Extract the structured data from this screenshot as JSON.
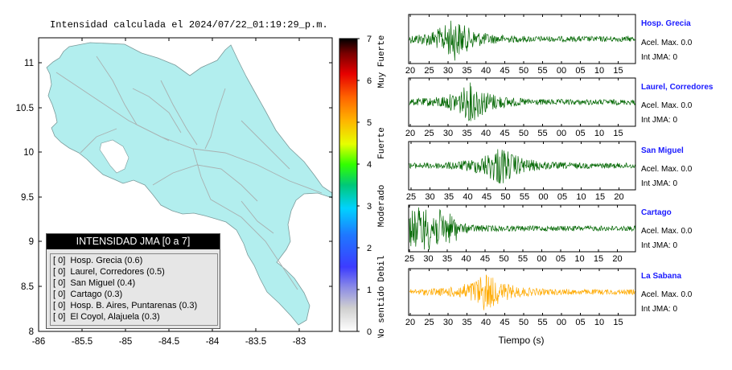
{
  "map": {
    "title": "Intensidad calculada el 2024/07/22_01:19:29_p.m.",
    "x_ticks": [
      "-86",
      "-85.5",
      "-85",
      "-84.5",
      "-84",
      "-83.5",
      "-83"
    ],
    "y_ticks": [
      "11",
      "10.5",
      "10",
      "9.5",
      "9",
      "8.5",
      "8"
    ],
    "land_color": "#b2eeee",
    "water_color": "#ffffff"
  },
  "colorbar": {
    "ticks": [
      "0",
      "1",
      "2",
      "3",
      "4",
      "5",
      "6",
      "7"
    ],
    "categories": [
      "No sentido",
      "Debil",
      "Moderado",
      "Fuerte",
      "Muy Fuerte"
    ]
  },
  "legend": {
    "title": "INTENSIDAD JMA [0 a 7]",
    "rows": [
      "[ 0]  Hosp. Grecia (0.6)",
      "[ 0]  Laurel, Corredores (0.5)",
      "[ 0]  San Miguel (0.4)",
      "[ 0]  Cartago (0.3)",
      "[ 0]  Hosp. B. Aires, Puntarenas (0.3)",
      "[ 0]  El Coyol, Alajuela (0.3)"
    ]
  },
  "seismograms": {
    "xlabel": "Tiempo (s)",
    "stations": [
      {
        "name": "Hosp. Grecia",
        "accel": "Acel. Max. 0.0",
        "int": "Int JMA: 0",
        "color": "#006600",
        "ticks": [
          "20",
          "25",
          "30",
          "35",
          "40",
          "45",
          "50",
          "55",
          "00",
          "05",
          "10",
          "15"
        ],
        "first_tick_offset": 0
      },
      {
        "name": "Laurel, Corredores",
        "accel": "Acel. Max. 0.0",
        "int": "Int JMA: 0",
        "color": "#006600",
        "ticks": [
          "20",
          "25",
          "30",
          "35",
          "40",
          "45",
          "50",
          "55",
          "00",
          "05",
          "10",
          "15"
        ],
        "first_tick_offset": 0
      },
      {
        "name": "San Miguel",
        "accel": "Acel. Max. 0.0",
        "int": "Int JMA: 0",
        "color": "#006600",
        "ticks": [
          "25",
          "30",
          "35",
          "40",
          "45",
          "50",
          "55",
          "00",
          "05",
          "10",
          "15",
          "20"
        ],
        "first_tick_offset": 3
      },
      {
        "name": "Cartago",
        "accel": "Acel. Max. 0.0",
        "int": "Int JMA: 0",
        "color": "#006600",
        "ticks": [
          "25",
          "30",
          "35",
          "40",
          "45",
          "50",
          "55",
          "00",
          "05",
          "10",
          "15",
          "20"
        ],
        "first_tick_offset": 1
      },
      {
        "name": "La Sabana",
        "accel": "Acel. Max. 0.0",
        "int": "Int JMA: 0",
        "color": "#ffaa00",
        "ticks": [
          "20",
          "25",
          "30",
          "35",
          "40",
          "45",
          "50",
          "55",
          "00",
          "05",
          "10",
          "15"
        ],
        "first_tick_offset": 0
      }
    ]
  },
  "chart_data": [
    {
      "type": "scatter",
      "title": "Intensidad calculada el 2024/07/22_01:19:29_p.m.",
      "xlabel": "",
      "ylabel": "",
      "xlim": [
        -86,
        -82.6
      ],
      "ylim": [
        8,
        11.3
      ],
      "legend_title": "INTENSIDAD JMA [0 a 7]",
      "stations": [
        {
          "name": "Hosp. Grecia",
          "jma": 0,
          "value": 0.6
        },
        {
          "name": "Laurel, Corredores",
          "jma": 0,
          "value": 0.5
        },
        {
          "name": "San Miguel",
          "jma": 0,
          "value": 0.4
        },
        {
          "name": "Cartago",
          "jma": 0,
          "value": 0.3
        },
        {
          "name": "Hosp. B. Aires, Puntarenas",
          "jma": 0,
          "value": 0.3
        },
        {
          "name": "El Coyol, Alajuela",
          "jma": 0,
          "value": 0.3
        }
      ],
      "colorbar": {
        "range": [
          0,
          7
        ],
        "labels": [
          "No sentido",
          "Debil",
          "Moderado",
          "Fuerte",
          "Muy Fuerte"
        ]
      }
    },
    {
      "type": "line",
      "xlabel": "Tiempo (s)",
      "series": [
        {
          "name": "Hosp. Grecia",
          "peak_time": 33
        },
        {
          "name": "Laurel, Corredores",
          "peak_time": 38
        },
        {
          "name": "San Miguel",
          "peak_time": 46
        },
        {
          "name": "Cartago",
          "peak_time": 25
        },
        {
          "name": "La Sabana",
          "peak_time": 42
        }
      ]
    }
  ]
}
